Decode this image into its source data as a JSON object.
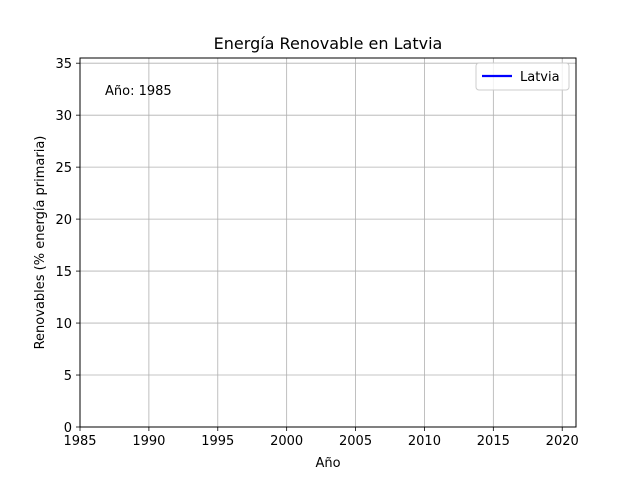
{
  "chart_data": {
    "type": "line",
    "title": "Energía Renovable en Latvia",
    "xlabel": "Año",
    "ylabel": "Renovables (% energía primaria)",
    "xlim": [
      1985,
      2021
    ],
    "ylim": [
      0,
      35.5
    ],
    "xticks": [
      1985,
      1990,
      1995,
      2000,
      2005,
      2010,
      2015,
      2020
    ],
    "yticks": [
      0,
      5,
      10,
      15,
      20,
      25,
      30,
      35
    ],
    "grid": true,
    "legend_position": "top-right",
    "annotation": "Año: 1985",
    "series": [
      {
        "name": "Latvia",
        "color": "#0000ff",
        "x": [],
        "y": []
      }
    ]
  }
}
